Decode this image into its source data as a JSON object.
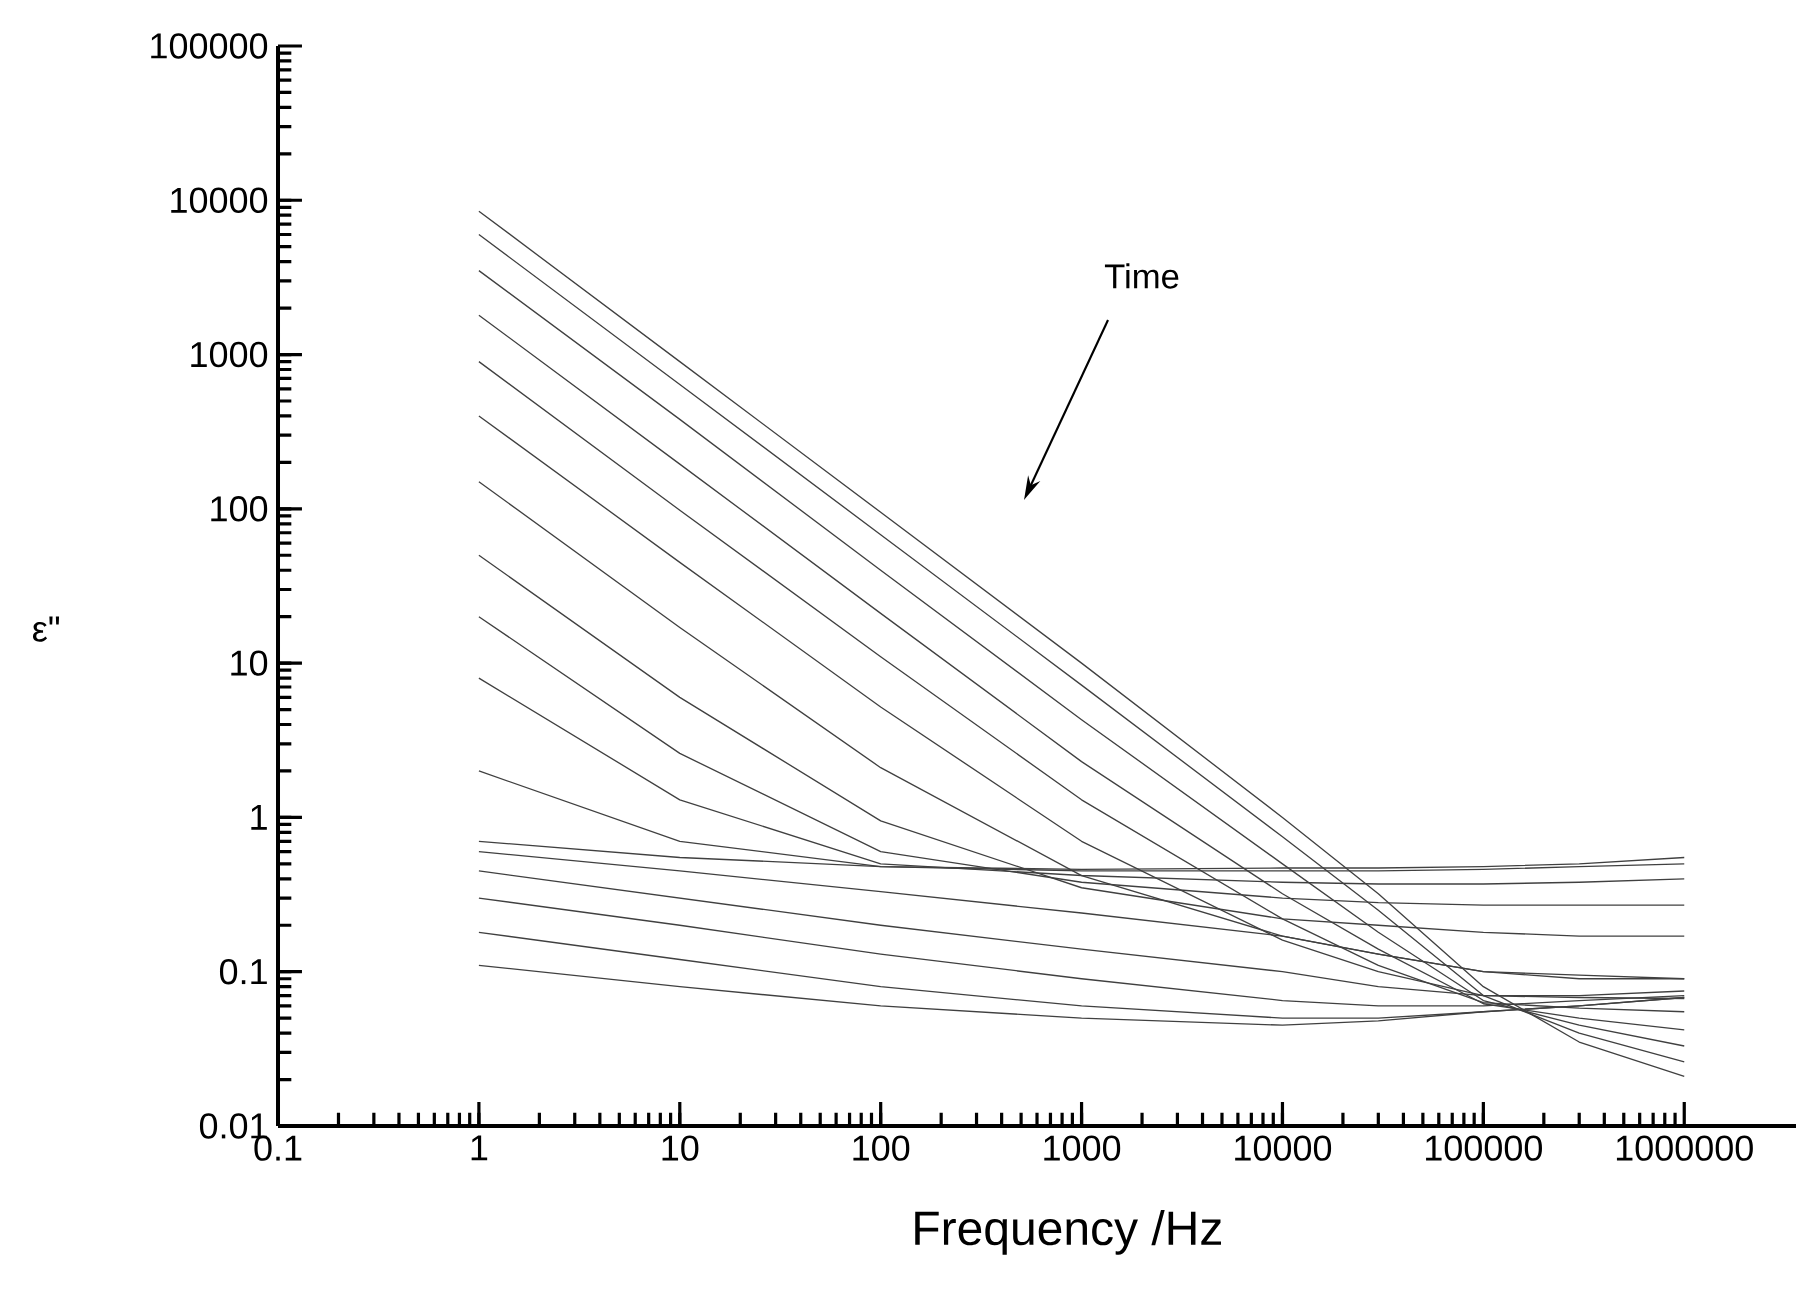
{
  "chart_data": {
    "type": "line",
    "xlabel": "Frequency /Hz",
    "ylabel": "ε\"",
    "log": "xy",
    "grid": false,
    "marker": "none",
    "line_style": "solid",
    "annotations": [
      "Time"
    ],
    "xlim": [
      0.1,
      3600000
    ],
    "ylim": [
      0.01,
      100000
    ],
    "xticks": [
      0.1,
      1,
      10,
      100,
      1000,
      10000,
      100000,
      1000000
    ],
    "yticks": [
      0.01,
      0.1,
      1,
      10,
      100,
      1000,
      10000,
      100000
    ],
    "x": [
      1,
      10,
      100,
      1000,
      10000,
      30000,
      100000,
      300000,
      1000000
    ],
    "series": [
      {
        "color": "#404040",
        "values": [
          8500,
          900,
          95,
          10,
          1.0,
          0.32,
          0.08,
          0.035,
          0.021
        ]
      },
      {
        "color": "#404040",
        "values": [
          6000,
          640,
          68,
          7.2,
          0.75,
          0.25,
          0.07,
          0.04,
          0.026
        ]
      },
      {
        "color": "#404040",
        "values": [
          3500,
          380,
          40,
          4.3,
          0.5,
          0.18,
          0.065,
          0.045,
          0.033
        ]
      },
      {
        "color": "#404040",
        "values": [
          1800,
          195,
          21,
          2.3,
          0.32,
          0.14,
          0.062,
          0.05,
          0.042
        ]
      },
      {
        "color": "#404040",
        "values": [
          900,
          98,
          11,
          1.3,
          0.22,
          0.11,
          0.063,
          0.058,
          0.055
        ]
      },
      {
        "color": "#404040",
        "values": [
          400,
          45,
          5.2,
          0.7,
          0.16,
          0.1,
          0.07,
          0.068,
          0.067
        ]
      },
      {
        "color": "#404040",
        "values": [
          150,
          17,
          2.1,
          0.42,
          0.17,
          0.13,
          0.1,
          0.095,
          0.09
        ]
      },
      {
        "color": "#404040",
        "values": [
          50,
          6,
          0.95,
          0.35,
          0.22,
          0.2,
          0.18,
          0.17,
          0.17
        ]
      },
      {
        "color": "#404040",
        "values": [
          20,
          2.6,
          0.6,
          0.38,
          0.3,
          0.28,
          0.27,
          0.27,
          0.27
        ]
      },
      {
        "color": "#404040",
        "values": [
          8,
          1.3,
          0.5,
          0.42,
          0.38,
          0.37,
          0.37,
          0.38,
          0.4
        ]
      },
      {
        "color": "#404040",
        "values": [
          2,
          0.7,
          0.48,
          0.45,
          0.45,
          0.45,
          0.46,
          0.48,
          0.5
        ]
      },
      {
        "color": "#404040",
        "values": [
          0.7,
          0.55,
          0.48,
          0.46,
          0.47,
          0.47,
          0.48,
          0.5,
          0.55
        ]
      },
      {
        "color": "#404040",
        "values": [
          0.6,
          0.45,
          0.33,
          0.24,
          0.17,
          0.13,
          0.1,
          0.09,
          0.09
        ]
      },
      {
        "color": "#404040",
        "values": [
          0.45,
          0.3,
          0.2,
          0.14,
          0.1,
          0.08,
          0.07,
          0.07,
          0.075
        ]
      },
      {
        "color": "#404040",
        "values": [
          0.3,
          0.2,
          0.13,
          0.09,
          0.065,
          0.06,
          0.06,
          0.065,
          0.07
        ]
      },
      {
        "color": "#404040",
        "values": [
          0.18,
          0.12,
          0.08,
          0.06,
          0.05,
          0.05,
          0.055,
          0.06,
          0.068
        ]
      },
      {
        "color": "#404040",
        "values": [
          0.11,
          0.08,
          0.06,
          0.05,
          0.045,
          0.048,
          0.055,
          0.06,
          0.068
        ]
      }
    ]
  }
}
